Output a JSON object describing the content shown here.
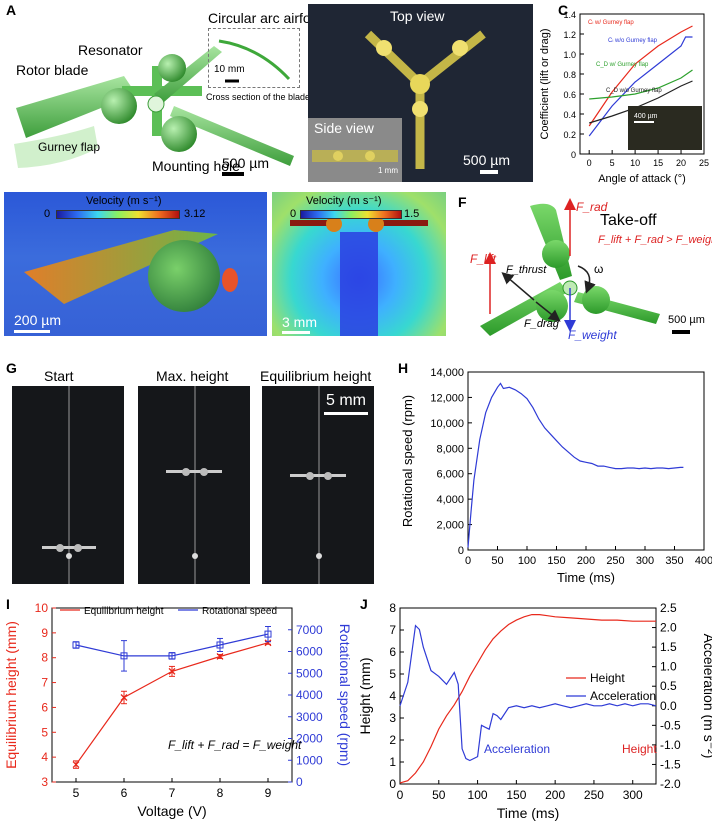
{
  "panels": {
    "A": {
      "label": "A",
      "annotations": {
        "rotor_blade": "Rotor blade",
        "resonator": "Resonator",
        "mounting_hole": "Mounting hole",
        "gurney_flap": "Gurney flap",
        "circular_arc_airfoil": "Circular arc airfoil",
        "inset_scale": "10 mm",
        "inset_caption": "Cross section of the blade",
        "scale": "500 µm"
      }
    },
    "B": {
      "label": "B",
      "top_view": "Top view",
      "side_view": "Side view",
      "side_scale": "1 mm",
      "scale": "500 µm"
    },
    "C": {
      "label": "C",
      "inset_scale": "400 µm"
    },
    "D": {
      "label": "D",
      "colorbar_title": "Velocity (m s⁻¹)",
      "colorbar_min": "0",
      "colorbar_max": "3.12",
      "scale": "200 µm"
    },
    "E": {
      "label": "E",
      "colorbar_title": "Velocity (m s⁻¹)",
      "colorbar_min": "0",
      "colorbar_max": "1.5",
      "scale": "3 mm"
    },
    "F": {
      "label": "F",
      "title": "Take-off",
      "f_rad": "F_rad",
      "f_lift": "F_lift",
      "f_thrust": "F_thrust",
      "f_drag": "F_drag",
      "f_weight": "F_weight",
      "omega": "ω",
      "condition": "F_lift + F_rad > F_weight",
      "scale": "500 µm"
    },
    "G": {
      "label": "G",
      "frames": [
        "Start",
        "Max. height",
        "Equilibrium height"
      ],
      "scale": "5 mm"
    },
    "H": {
      "label": "H"
    },
    "I": {
      "label": "I",
      "equation": "F_lift + F_rad = F_weight"
    },
    "J": {
      "label": "J",
      "annot_acceleration": "Acceleration",
      "annot_height": "Height"
    }
  },
  "colors": {
    "red": "#e8291c",
    "blue": "#2f3bd6",
    "green": "#2ca02c",
    "black": "#222222",
    "cfd_blue": "#2a4bd7"
  },
  "chart_data": [
    {
      "id": "C",
      "type": "line",
      "xlabel": "Angle of attack (°)",
      "ylabel": "Coefficient (lift or drag)",
      "xlim": [
        -2,
        25
      ],
      "ylim": [
        0,
        1.4
      ],
      "xticks": [
        "0",
        "5",
        "10",
        "15",
        "20",
        "25"
      ],
      "yticks": [
        "0",
        "0.2",
        "0.4",
        "0.6",
        "0.8",
        "1.0",
        "1.2",
        "1.4"
      ],
      "series": [
        {
          "name": "Cₗ w/ Gurney flap",
          "color": "#e8291c",
          "x": [
            0,
            5,
            10,
            15,
            20,
            22.5
          ],
          "y": [
            0.28,
            0.62,
            0.9,
            1.08,
            1.22,
            1.28
          ]
        },
        {
          "name": "Cₗ w/o Gurney flap",
          "color": "#2f3bd6",
          "x": [
            0,
            5,
            10,
            15,
            20,
            21,
            22.5
          ],
          "y": [
            0.18,
            0.48,
            0.72,
            0.9,
            1.08,
            1.17,
            1.17
          ]
        },
        {
          "name": "C_D w/ Gurney flap",
          "color": "#2ca02c",
          "x": [
            0,
            5,
            10,
            15,
            20,
            22.5
          ],
          "y": [
            0.55,
            0.57,
            0.6,
            0.66,
            0.76,
            0.84
          ]
        },
        {
          "name": "C_D w/o Gurney flap",
          "color": "#222222",
          "x": [
            0,
            5,
            10,
            15,
            20,
            22.5
          ],
          "y": [
            0.31,
            0.38,
            0.46,
            0.56,
            0.68,
            0.73
          ]
        }
      ],
      "grid": false
    },
    {
      "id": "H",
      "type": "line",
      "xlabel": "Time (ms)",
      "ylabel": "Rotational speed (rpm)",
      "xlim": [
        0,
        400
      ],
      "ylim": [
        0,
        14000
      ],
      "xticks": [
        "0",
        "50",
        "100",
        "150",
        "200",
        "250",
        "300",
        "350",
        "400"
      ],
      "yticks": [
        "0",
        "2,000",
        "4,000",
        "6,000",
        "8,000",
        "10,000",
        "12,000",
        "14,000"
      ],
      "series": [
        {
          "name": "",
          "color": "#2f3bd6",
          "x": [
            0,
            5,
            10,
            20,
            30,
            40,
            50,
            55,
            60,
            70,
            80,
            90,
            100,
            110,
            120,
            130,
            140,
            150,
            160,
            170,
            180,
            190,
            200,
            210,
            220,
            230,
            240,
            250,
            260,
            270,
            280,
            290,
            300,
            310,
            320,
            330,
            340,
            350,
            360,
            365
          ],
          "y": [
            200,
            3000,
            5500,
            8700,
            10800,
            12000,
            12800,
            13100,
            12700,
            12800,
            12600,
            12300,
            11900,
            11200,
            10300,
            9600,
            9100,
            8600,
            8100,
            7700,
            7300,
            7000,
            6900,
            6800,
            6600,
            6600,
            6500,
            6400,
            6400,
            6450,
            6450,
            6400,
            6450,
            6400,
            6450,
            6450,
            6400,
            6450,
            6500,
            6500
          ]
        }
      ],
      "grid": false
    },
    {
      "id": "I",
      "type": "line",
      "xlabel": "Voltage (V)",
      "ylabel": "Equilibrium height (mm)",
      "ylabel_right": "Rotational speed (rpm)",
      "xlim": [
        4.5,
        9.5
      ],
      "ylim": [
        3,
        10
      ],
      "ylim_right": [
        0,
        8000
      ],
      "xticks": [
        "5",
        "6",
        "7",
        "8",
        "9"
      ],
      "yticks": [
        "3",
        "4",
        "5",
        "6",
        "7",
        "8",
        "9",
        "10"
      ],
      "yticks_right": [
        "0",
        "1000",
        "2000",
        "3000",
        "4000",
        "5000",
        "6000",
        "7000"
      ],
      "series": [
        {
          "name": "Equilibrium height",
          "color": "#e8291c",
          "axis": "left",
          "x": [
            5,
            6,
            7,
            8,
            9
          ],
          "y": [
            3.7,
            6.4,
            7.45,
            8.05,
            8.6
          ],
          "err": [
            0.15,
            0.25,
            0.2,
            0.08,
            0.06
          ]
        },
        {
          "name": "Rotational speed",
          "color": "#2f3bd6",
          "axis": "right",
          "x": [
            5,
            6,
            7,
            8,
            9
          ],
          "y": [
            6300,
            5800,
            5800,
            6300,
            6800
          ],
          "err": [
            150,
            700,
            150,
            300,
            350
          ]
        }
      ],
      "grid": false
    },
    {
      "id": "J",
      "type": "line",
      "xlabel": "Time (ms)",
      "ylabel": "Height (mm)",
      "ylabel_right": "Acceleration (m s⁻²)",
      "xlim": [
        0,
        330
      ],
      "ylim": [
        0,
        8
      ],
      "ylim_right": [
        -2.0,
        2.5
      ],
      "xticks": [
        "0",
        "50",
        "100",
        "150",
        "200",
        "250",
        "300"
      ],
      "yticks": [
        "0",
        "1",
        "2",
        "3",
        "4",
        "5",
        "6",
        "7",
        "8"
      ],
      "yticks_right": [
        "-2.0",
        "-1.5",
        "-1.0",
        "-0.5",
        "0.0",
        "0.5",
        "1.0",
        "1.5",
        "2.0",
        "2.5"
      ],
      "series": [
        {
          "name": "Height",
          "color": "#e8291c",
          "axis": "left",
          "x": [
            0,
            10,
            20,
            30,
            40,
            50,
            60,
            70,
            80,
            90,
            100,
            110,
            120,
            130,
            140,
            150,
            160,
            170,
            180,
            190,
            200,
            220,
            240,
            260,
            280,
            300,
            320,
            330
          ],
          "y": [
            0.05,
            0.15,
            0.5,
            1.0,
            1.7,
            2.5,
            3.1,
            3.6,
            4.2,
            4.9,
            5.5,
            6.1,
            6.6,
            6.95,
            7.25,
            7.45,
            7.6,
            7.7,
            7.7,
            7.65,
            7.6,
            7.55,
            7.5,
            7.45,
            7.45,
            7.4,
            7.4,
            7.4
          ]
        },
        {
          "name": "Acceleration",
          "color": "#2f3bd6",
          "axis": "right",
          "x": [
            0,
            10,
            20,
            25,
            30,
            40,
            50,
            60,
            70,
            75,
            80,
            85,
            90,
            100,
            105,
            110,
            115,
            120,
            125,
            130,
            140,
            150,
            160,
            170,
            180,
            190,
            200,
            210,
            220,
            230,
            240,
            250,
            260,
            270,
            280,
            290,
            300,
            310,
            320,
            330
          ],
          "y": [
            0.0,
            0.6,
            2.05,
            1.95,
            1.5,
            0.9,
            0.75,
            0.55,
            0.85,
            0.55,
            -1.1,
            -1.35,
            -1.4,
            -1.3,
            -0.5,
            -0.55,
            -0.6,
            -0.2,
            -0.25,
            -0.35,
            -0.05,
            0.0,
            -0.05,
            0.0,
            -0.05,
            0.0,
            0.05,
            0.0,
            -0.05,
            0.0,
            0.05,
            0.0,
            0.0,
            0.05,
            0.0,
            0.05,
            0.0,
            0.05,
            0.05,
            0.0
          ]
        }
      ],
      "grid": false
    }
  ]
}
